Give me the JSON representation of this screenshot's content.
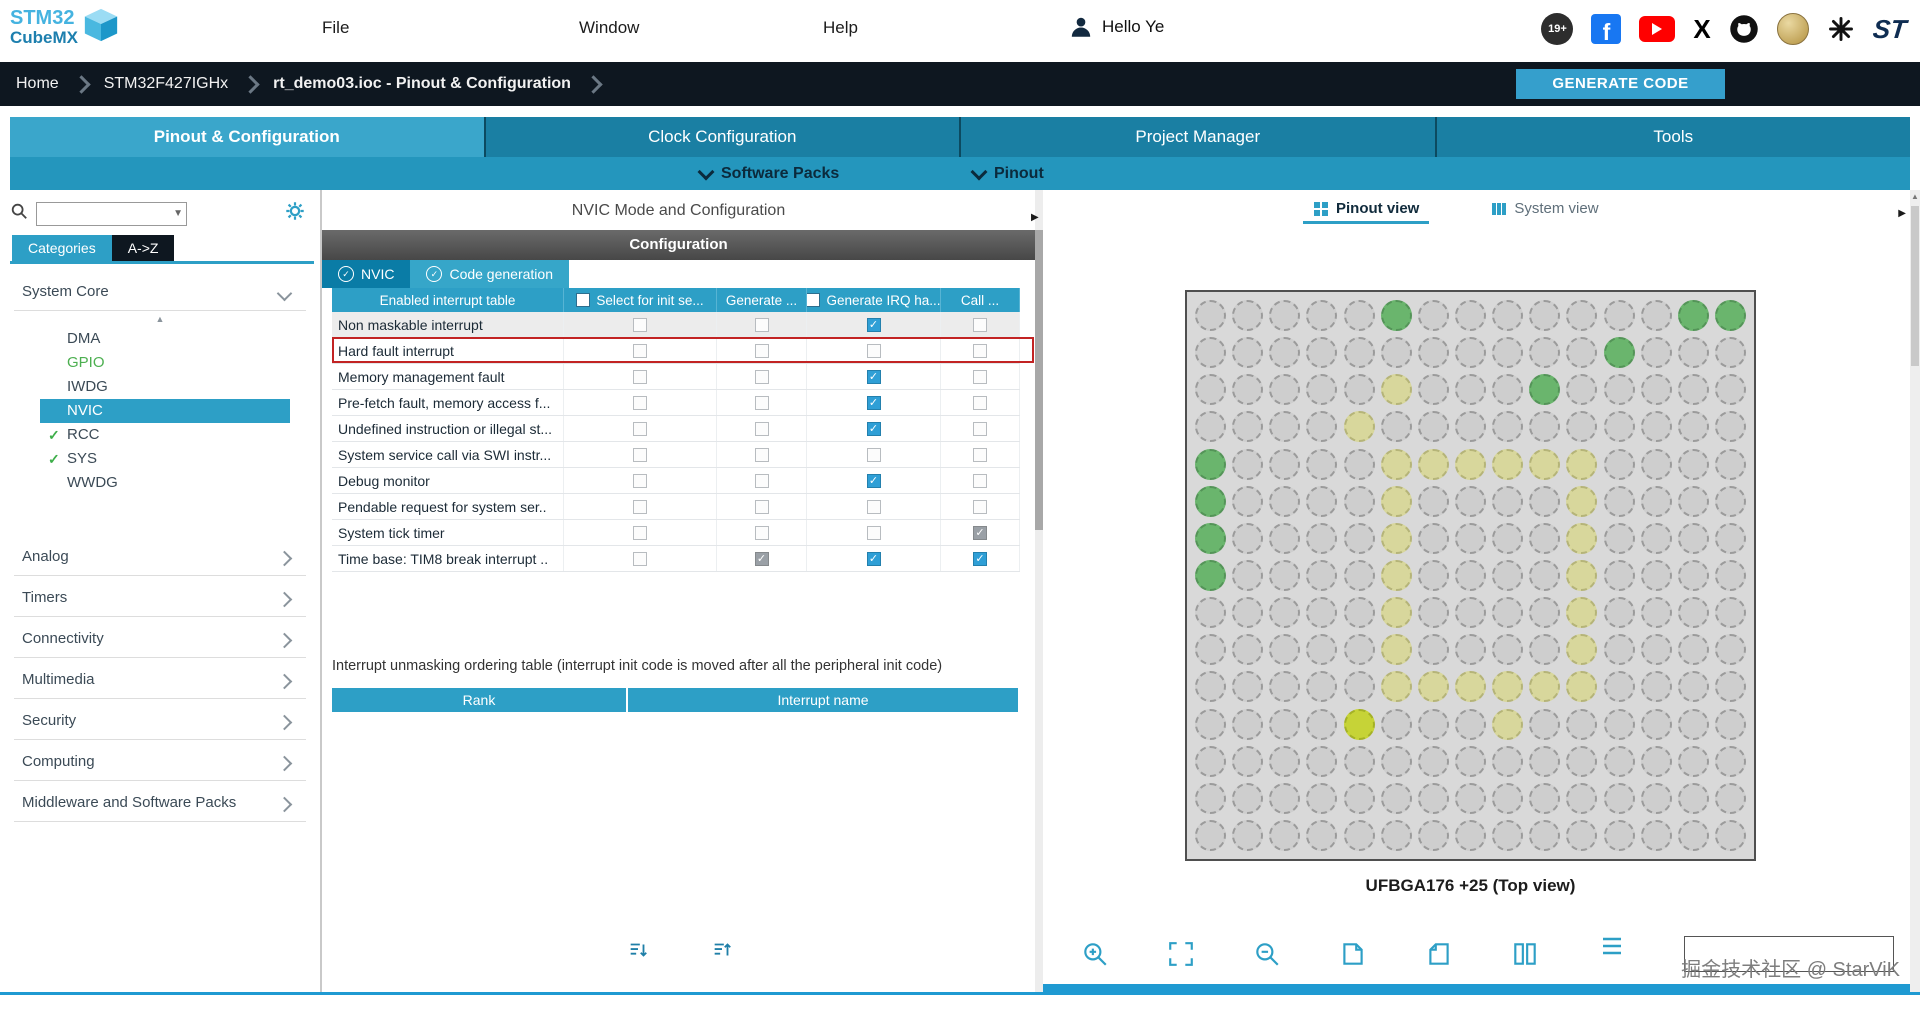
{
  "logo": {
    "line1": "STM32",
    "line2": "CubeMX"
  },
  "menubar": {
    "items": [
      "File",
      "Window",
      "Help"
    ],
    "user_label": "Hello Ye"
  },
  "topbar_icons": {
    "badge": "19+",
    "facebook": "f",
    "x_label": "X",
    "st": "ST"
  },
  "breadcrumb": {
    "items": [
      "Home",
      "STM32F427IGHx",
      "rt_demo03.ioc - Pinout & Configuration"
    ],
    "generate_button": "GENERATE CODE"
  },
  "main_tabs": [
    {
      "label": "Pinout & Configuration",
      "active": true
    },
    {
      "label": "Clock Configuration",
      "active": false
    },
    {
      "label": "Project Manager",
      "active": false
    },
    {
      "label": "Tools",
      "active": false
    }
  ],
  "subbar": {
    "software_packs": "Software Packs",
    "pinout": "Pinout"
  },
  "sidebar": {
    "tabs": [
      {
        "label": "Categories",
        "active": true
      },
      {
        "label": "A->Z",
        "active": false
      }
    ],
    "system_core": {
      "label": "System Core",
      "items": [
        {
          "label": "DMA"
        },
        {
          "label": "GPIO",
          "style": "green"
        },
        {
          "label": "IWDG"
        },
        {
          "label": "NVIC",
          "selected": true
        },
        {
          "label": "RCC",
          "checked": true
        },
        {
          "label": "SYS",
          "checked": true
        },
        {
          "label": "WWDG"
        }
      ]
    },
    "sections": [
      "Analog",
      "Timers",
      "Connectivity",
      "Multimedia",
      "Security",
      "Computing",
      "Middleware and Software Packs"
    ]
  },
  "nvic": {
    "title": "NVIC Mode and Configuration",
    "config_title": "Configuration",
    "tabs": [
      {
        "label": "NVIC",
        "active": true
      },
      {
        "label": "Code generation",
        "active": false
      }
    ],
    "table": {
      "headers": [
        {
          "label": "Enabled interrupt table",
          "checkbox": false
        },
        {
          "label": "Select for init se...",
          "checkbox": true
        },
        {
          "label": "Generate ...",
          "checkbox": false
        },
        {
          "label": "Generate IRQ ha...",
          "checkbox": true
        },
        {
          "label": "Call ...",
          "checkbox": false
        }
      ],
      "rows": [
        {
          "name": "Non maskable interrupt",
          "selected": true,
          "states": [
            "unchecked",
            "unchecked",
            "checked",
            "unchecked"
          ]
        },
        {
          "name": "Hard fault interrupt",
          "highlight": true,
          "states": [
            "unchecked",
            "unchecked",
            "unchecked",
            "unchecked"
          ]
        },
        {
          "name": "Memory management fault",
          "states": [
            "unchecked",
            "unchecked",
            "checked",
            "unchecked"
          ]
        },
        {
          "name": "Pre-fetch fault, memory access f...",
          "states": [
            "unchecked",
            "unchecked",
            "checked",
            "unchecked"
          ]
        },
        {
          "name": "Undefined instruction or illegal st...",
          "states": [
            "unchecked",
            "unchecked",
            "checked",
            "unchecked"
          ]
        },
        {
          "name": "System service call via SWI instr...",
          "states": [
            "unchecked",
            "unchecked",
            "unchecked",
            "unchecked"
          ]
        },
        {
          "name": "Debug monitor",
          "states": [
            "unchecked",
            "unchecked",
            "checked",
            "unchecked"
          ]
        },
        {
          "name": "Pendable request for system ser..",
          "states": [
            "unchecked",
            "unchecked",
            "unchecked",
            "unchecked"
          ]
        },
        {
          "name": "System tick timer",
          "states": [
            "unchecked",
            "unchecked",
            "unchecked",
            "checked_gray"
          ]
        },
        {
          "name": "Time base: TIM8 break interrupt ..",
          "states": [
            "unchecked",
            "checked_gray",
            "checked",
            "checked"
          ]
        }
      ]
    },
    "ordering_note": "Interrupt unmasking ordering table (interrupt init code is moved after all the peripheral init code)",
    "ordering_headers": [
      "Rank",
      "Interrupt name"
    ]
  },
  "right_panel": {
    "tabs": [
      {
        "label": "Pinout view",
        "active": true
      },
      {
        "label": "System view",
        "active": false
      }
    ],
    "caption": "UFBGA176 +25 (Top view)",
    "watermark": "掘金技术社区 @ StarViK",
    "chip_grid": [
      ".....g.......gg",
      "...........g...",
      ".....y...g.....",
      "....y..........",
      "g....yyyyyy....",
      "g....y....y....",
      "g....y....y....",
      "g....y....y....",
      ".....y....y....",
      ".....y....y....",
      ".....yyyyyy....",
      "....Y...y......",
      "...............",
      "...............",
      "..............."
    ]
  },
  "colors": {
    "accent_teal": "#2d9fc6",
    "tab_active": "#3aa6cb",
    "tab_inactive": "#1a7fa3",
    "breadcrumb_bg": "#0e1720",
    "check_blue": "#2f9fd6",
    "highlight_red": "#c22323",
    "pin_green": "#6ab56d",
    "pin_yellow": "#d8d79c",
    "pin_bright": "#c6d337",
    "scrollbar_blue": "#1f9ad2"
  }
}
